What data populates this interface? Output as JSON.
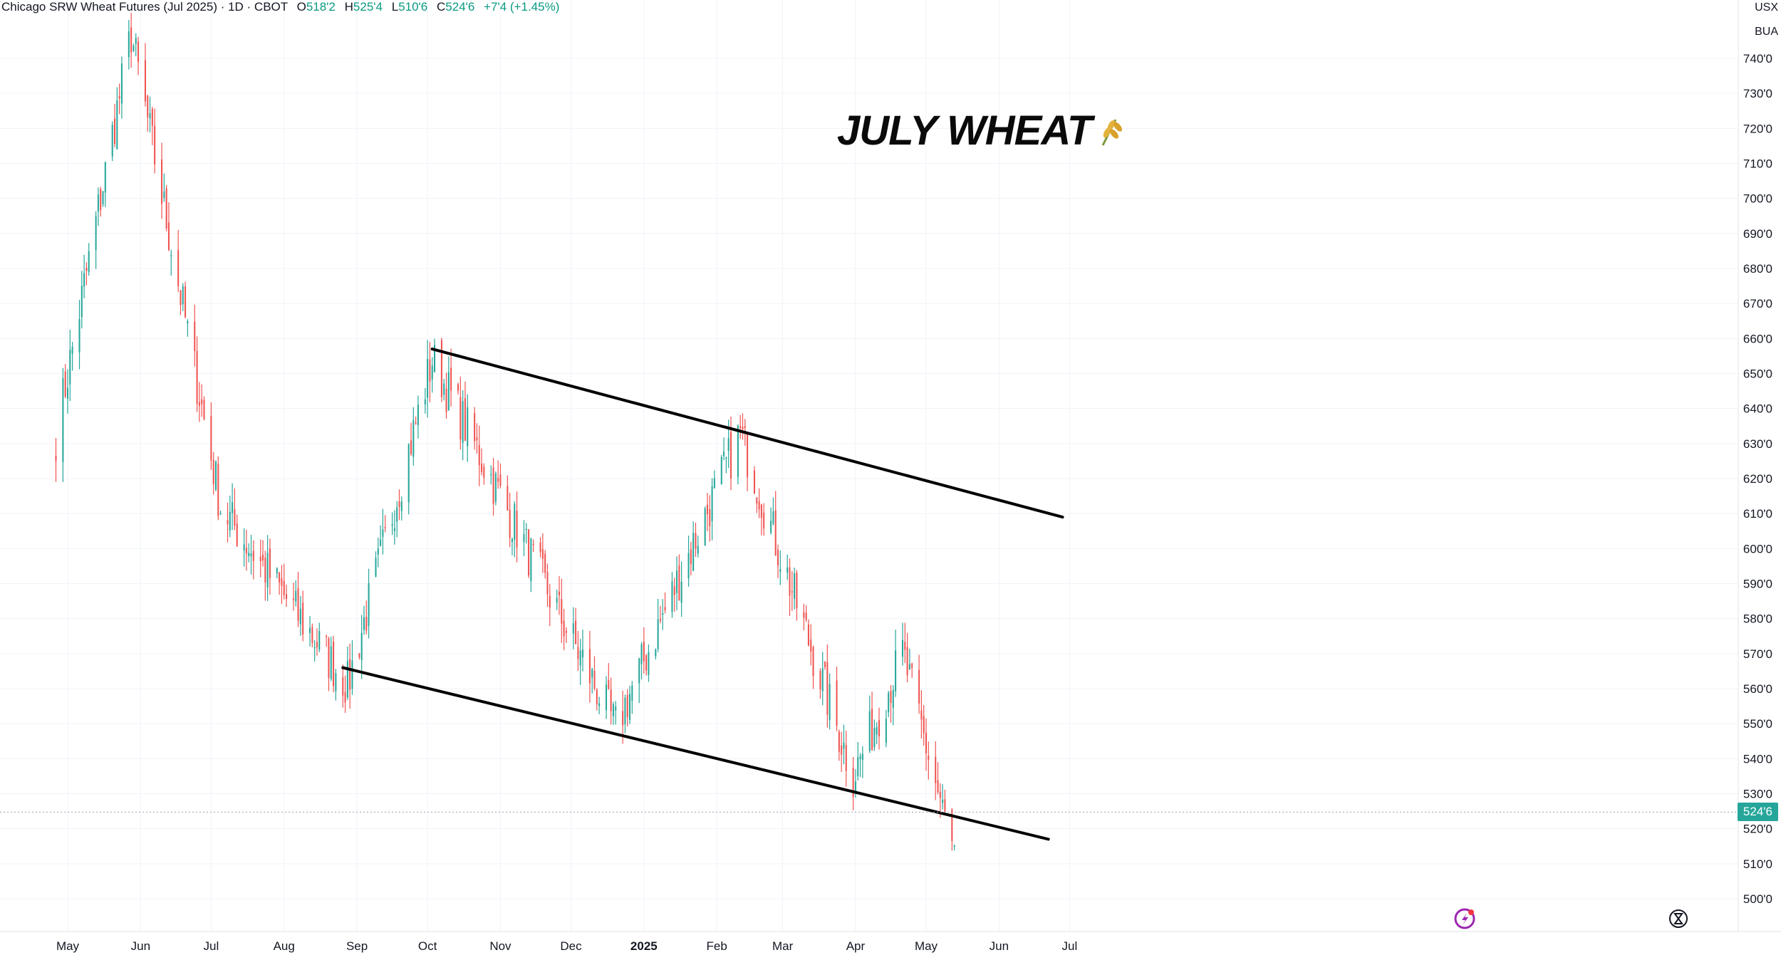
{
  "legend": {
    "symbol": "Chicago SRW Wheat Futures (Jul 2025) · 1D · CBOT",
    "open_label": "O",
    "open": "518'2",
    "high_label": "H",
    "high": "525'4",
    "low_label": "L",
    "low": "510'6",
    "close_label": "C",
    "close": "524'6",
    "change": "+7'4 (+1.45%)"
  },
  "units": {
    "currency": "USX",
    "measure": "BUA"
  },
  "annotation": {
    "title": "JULY WHEAT"
  },
  "last_price_label": "524'6",
  "colors": {
    "up": "#26a69a",
    "down": "#ef5350",
    "grid": "#f0f3fa",
    "trendline": "#000000"
  },
  "icons": [
    "wheat-icon",
    "flash-icon",
    "hourglass-icon"
  ],
  "chart_data": {
    "type": "candlestick",
    "title": "JULY WHEAT",
    "x_tick_labels": [
      "May",
      "Jun",
      "Jul",
      "Aug",
      "Sep",
      "Oct",
      "Nov",
      "Dec",
      "2025",
      "Feb",
      "Mar",
      "Apr",
      "May",
      "Jun",
      "Jul"
    ],
    "y_tick_labels": [
      "740'0",
      "730'0",
      "720'0",
      "710'0",
      "700'0",
      "690'0",
      "680'0",
      "670'0",
      "660'0",
      "650'0",
      "640'0",
      "630'0",
      "620'0",
      "610'0",
      "600'0",
      "590'0",
      "580'0",
      "570'0",
      "560'0",
      "550'0",
      "540'0",
      "530'0",
      "520'0",
      "510'0",
      "500'0"
    ],
    "ylim": [
      497,
      752
    ],
    "last_price": 524.75,
    "trendlines": [
      {
        "from": [
          "2024-10-03",
          657
        ],
        "to": [
          "2025-06-28",
          609
        ]
      },
      {
        "from": [
          "2024-08-26",
          566
        ],
        "to": [
          "2025-06-22",
          517
        ]
      }
    ],
    "key_points": [
      {
        "date": "2024-04-26",
        "price": 632
      },
      {
        "date": "2024-05-28",
        "price": 747
      },
      {
        "date": "2024-07-05",
        "price": 612
      },
      {
        "date": "2024-08-28",
        "price": 561
      },
      {
        "date": "2024-10-03",
        "price": 654
      },
      {
        "date": "2024-12-20",
        "price": 549
      },
      {
        "date": "2025-02-11",
        "price": 633
      },
      {
        "date": "2025-03-31",
        "price": 535
      },
      {
        "date": "2025-04-21",
        "price": 570
      },
      {
        "date": "2025-05-13",
        "price": 512
      },
      {
        "date": "2025-05-14",
        "price": 524.75
      }
    ]
  }
}
